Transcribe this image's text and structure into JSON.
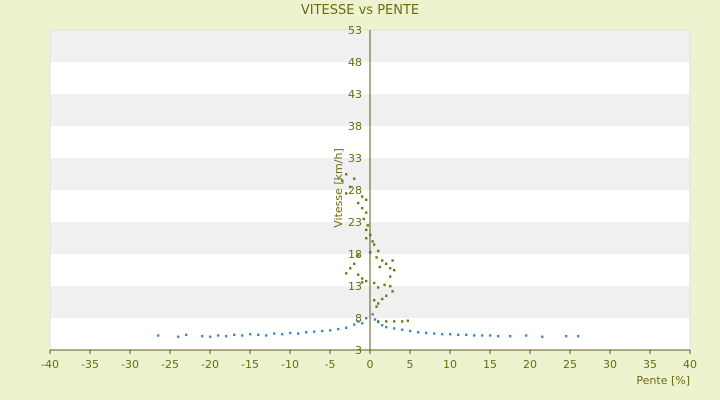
{
  "chart_data": {
    "type": "scatter",
    "title": "VITESSE vs PENTE",
    "xlabel": "Pente [%]",
    "ylabel": "Vitesse [km/h]",
    "xlim": [
      -40,
      40
    ],
    "ylim": [
      3,
      53
    ],
    "xticks": [
      -40,
      -35,
      -30,
      -25,
      -20,
      -15,
      -10,
      -5,
      0,
      5,
      10,
      15,
      20,
      25,
      30,
      35,
      40
    ],
    "yticks": [
      3,
      8,
      13,
      18,
      23,
      28,
      33,
      38,
      43,
      48,
      53
    ],
    "grid": "alternating horizontal bands",
    "colors": {
      "background": "#eef3cf",
      "band_light": "#ffffff",
      "band_dark": "#f0f0f0",
      "axis": "#5a5a1a",
      "text": "#6b6b12",
      "series_a": "#3a88d4",
      "series_b": "#6b7a12"
    },
    "series": [
      {
        "color": "#3a88d4",
        "points": [
          [
            -26.5,
            5.3
          ],
          [
            -24.0,
            5.1
          ],
          [
            -23.0,
            5.4
          ],
          [
            -21.0,
            5.2
          ],
          [
            -20.0,
            5.1
          ],
          [
            -19.0,
            5.3
          ],
          [
            -18.0,
            5.2
          ],
          [
            -17.0,
            5.4
          ],
          [
            -16.0,
            5.3
          ],
          [
            -15.0,
            5.5
          ],
          [
            -14.0,
            5.4
          ],
          [
            -13.0,
            5.3
          ],
          [
            -12.0,
            5.6
          ],
          [
            -11.0,
            5.5
          ],
          [
            -10.0,
            5.7
          ],
          [
            -9.0,
            5.6
          ],
          [
            -8.0,
            5.8
          ],
          [
            -7.0,
            5.9
          ],
          [
            -6.0,
            6.0
          ],
          [
            -5.0,
            6.1
          ],
          [
            -4.0,
            6.3
          ],
          [
            -3.0,
            6.5
          ],
          [
            -2.0,
            7.0
          ],
          [
            -1.5,
            7.5
          ],
          [
            -1.0,
            7.2
          ],
          [
            -0.5,
            8.0
          ],
          [
            0.3,
            8.6
          ],
          [
            0.6,
            7.8
          ],
          [
            1.0,
            7.4
          ],
          [
            1.5,
            6.9
          ],
          [
            2.0,
            6.6
          ],
          [
            3.0,
            6.4
          ],
          [
            4.0,
            6.2
          ],
          [
            5.0,
            6.0
          ],
          [
            6.0,
            5.8
          ],
          [
            7.0,
            5.7
          ],
          [
            8.0,
            5.6
          ],
          [
            9.0,
            5.5
          ],
          [
            10.0,
            5.5
          ],
          [
            11.0,
            5.4
          ],
          [
            12.0,
            5.4
          ],
          [
            13.0,
            5.3
          ],
          [
            14.0,
            5.3
          ],
          [
            15.0,
            5.3
          ],
          [
            16.0,
            5.2
          ],
          [
            17.5,
            5.2
          ],
          [
            19.5,
            5.3
          ],
          [
            21.5,
            5.1
          ],
          [
            24.5,
            5.2
          ],
          [
            26.0,
            5.2
          ]
        ]
      },
      {
        "color": "#6b7a12",
        "points": [
          [
            -3.5,
            29.5
          ],
          [
            -3.0,
            30.5
          ],
          [
            -2.5,
            28.5
          ],
          [
            -3.0,
            27.5
          ],
          [
            -2.0,
            29.8
          ],
          [
            -1.5,
            26.0
          ],
          [
            -1.0,
            27.0
          ],
          [
            -0.5,
            26.5
          ],
          [
            -1.0,
            25.2
          ],
          [
            -0.5,
            24.5
          ],
          [
            -0.8,
            23.5
          ],
          [
            -0.3,
            22.5
          ],
          [
            -0.5,
            21.8
          ],
          [
            0.0,
            21.0
          ],
          [
            0.3,
            20.0
          ],
          [
            -0.5,
            20.5
          ],
          [
            0.5,
            19.5
          ],
          [
            1.0,
            18.5
          ],
          [
            0.8,
            17.5
          ],
          [
            1.5,
            17.0
          ],
          [
            1.2,
            16.0
          ],
          [
            2.0,
            16.5
          ],
          [
            2.5,
            15.8
          ],
          [
            2.8,
            17.0
          ],
          [
            3.0,
            15.5
          ],
          [
            2.5,
            14.5
          ],
          [
            -2.0,
            16.5
          ],
          [
            -2.5,
            15.8
          ],
          [
            -3.0,
            15.0
          ],
          [
            -1.5,
            14.8
          ],
          [
            -1.0,
            14.2
          ],
          [
            -0.5,
            13.8
          ],
          [
            0.5,
            13.5
          ],
          [
            1.0,
            12.8
          ],
          [
            1.8,
            13.2
          ],
          [
            2.5,
            13.0
          ],
          [
            2.8,
            12.2
          ],
          [
            2.0,
            11.5
          ],
          [
            0.5,
            10.8
          ],
          [
            1.0,
            10.3
          ],
          [
            0.8,
            9.8
          ],
          [
            1.5,
            11.0
          ],
          [
            -1.0,
            13.6
          ],
          [
            -1.5,
            17.8
          ],
          [
            0.0,
            18.3
          ],
          [
            1.0,
            7.5
          ],
          [
            2.0,
            7.5
          ],
          [
            3.0,
            7.5
          ],
          [
            4.0,
            7.5
          ],
          [
            4.7,
            7.6
          ]
        ]
      }
    ]
  }
}
